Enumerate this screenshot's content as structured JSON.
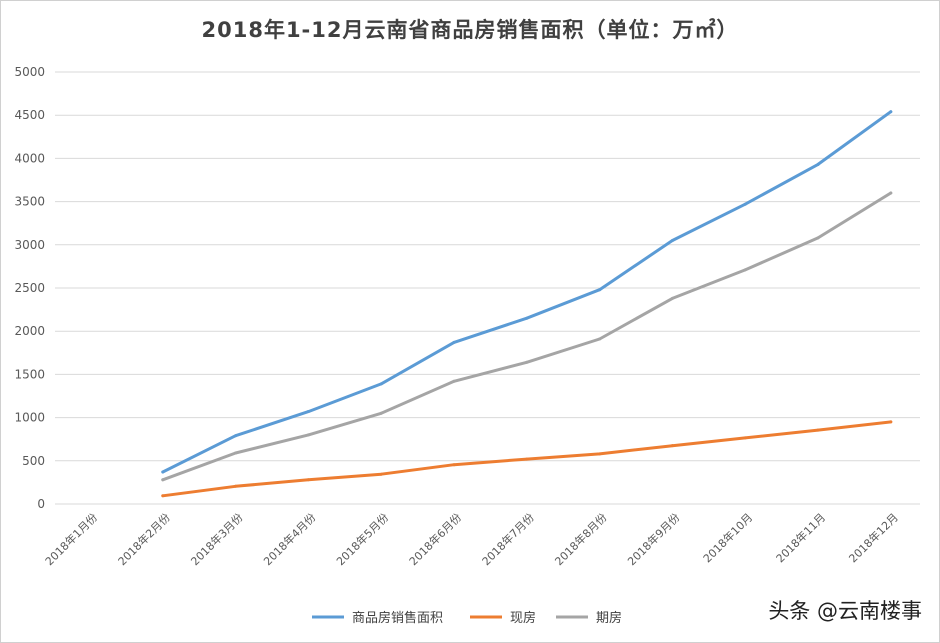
{
  "chart_data": {
    "type": "line",
    "title": "2018年1-12月云南省商品房销售面积（单位：万㎡）",
    "xlabel": "",
    "ylabel": "",
    "ylim": [
      0,
      5000
    ],
    "yticks": [
      0,
      500,
      1000,
      1500,
      2000,
      2500,
      3000,
      3500,
      4000,
      4500,
      5000
    ],
    "grid": true,
    "legend_position": "bottom",
    "categories": [
      "2018年1月份",
      "2018年2月份",
      "2018年3月份",
      "2018年4月份",
      "2018年5月份",
      "2018年6月份",
      "2018年7月份",
      "2018年8月份",
      "2018年9月份",
      "2018年10月",
      "2018年11月",
      "2018年12月"
    ],
    "series": [
      {
        "name": "商品房销售面积",
        "color": "#5b9bd5",
        "values": [
          null,
          370,
          790,
          1070,
          1390,
          1870,
          2150,
          2480,
          3050,
          3470,
          3930,
          4540
        ]
      },
      {
        "name": "现房",
        "color": "#ed7d31",
        "values": [
          null,
          95,
          205,
          280,
          345,
          455,
          520,
          580,
          675,
          765,
          855,
          950
        ]
      },
      {
        "name": "期房",
        "color": "#a5a5a5",
        "values": [
          null,
          280,
          590,
          800,
          1050,
          1420,
          1640,
          1910,
          2380,
          2710,
          3080,
          3600
        ]
      }
    ]
  },
  "watermark": "头条 @云南楼事"
}
